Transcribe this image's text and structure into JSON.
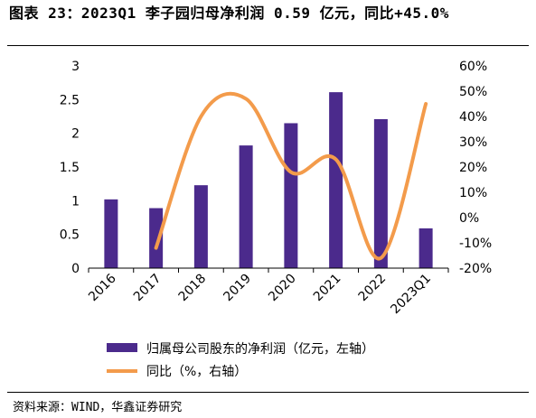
{
  "title": "图表 23：2023Q1 李子园归母净利润 0.59 亿元，同比+45.0%",
  "source": "资料来源：WIND，华鑫证券研究",
  "colors": {
    "bar": "#4b2a8c",
    "line": "#f39b4b",
    "axis": "#000000"
  },
  "chart_data": {
    "type": "bar",
    "categories": [
      "2016",
      "2017",
      "2018",
      "2019",
      "2020",
      "2021",
      "2022",
      "2023Q1"
    ],
    "series": [
      {
        "name": "归属母公司股东的净利润（亿元，左轴）",
        "type": "bar",
        "axis": "left",
        "values": [
          1.02,
          0.89,
          1.23,
          1.82,
          2.15,
          2.61,
          2.21,
          0.59
        ]
      },
      {
        "name": "同比（%，右轴）",
        "type": "line",
        "axis": "right",
        "values": [
          null,
          -12,
          40,
          47,
          18,
          23,
          -16,
          45
        ]
      }
    ],
    "left_ticks": [
      "0",
      "0.5",
      "1",
      "1.5",
      "2",
      "2.5",
      "3"
    ],
    "right_ticks": [
      "-20%",
      "-10%",
      "0%",
      "10%",
      "20%",
      "30%",
      "40%",
      "50%",
      "60%"
    ],
    "ylim_left": [
      0,
      3
    ],
    "ylim_right": [
      -20,
      60
    ],
    "legend": "bottom",
    "grid": false
  }
}
